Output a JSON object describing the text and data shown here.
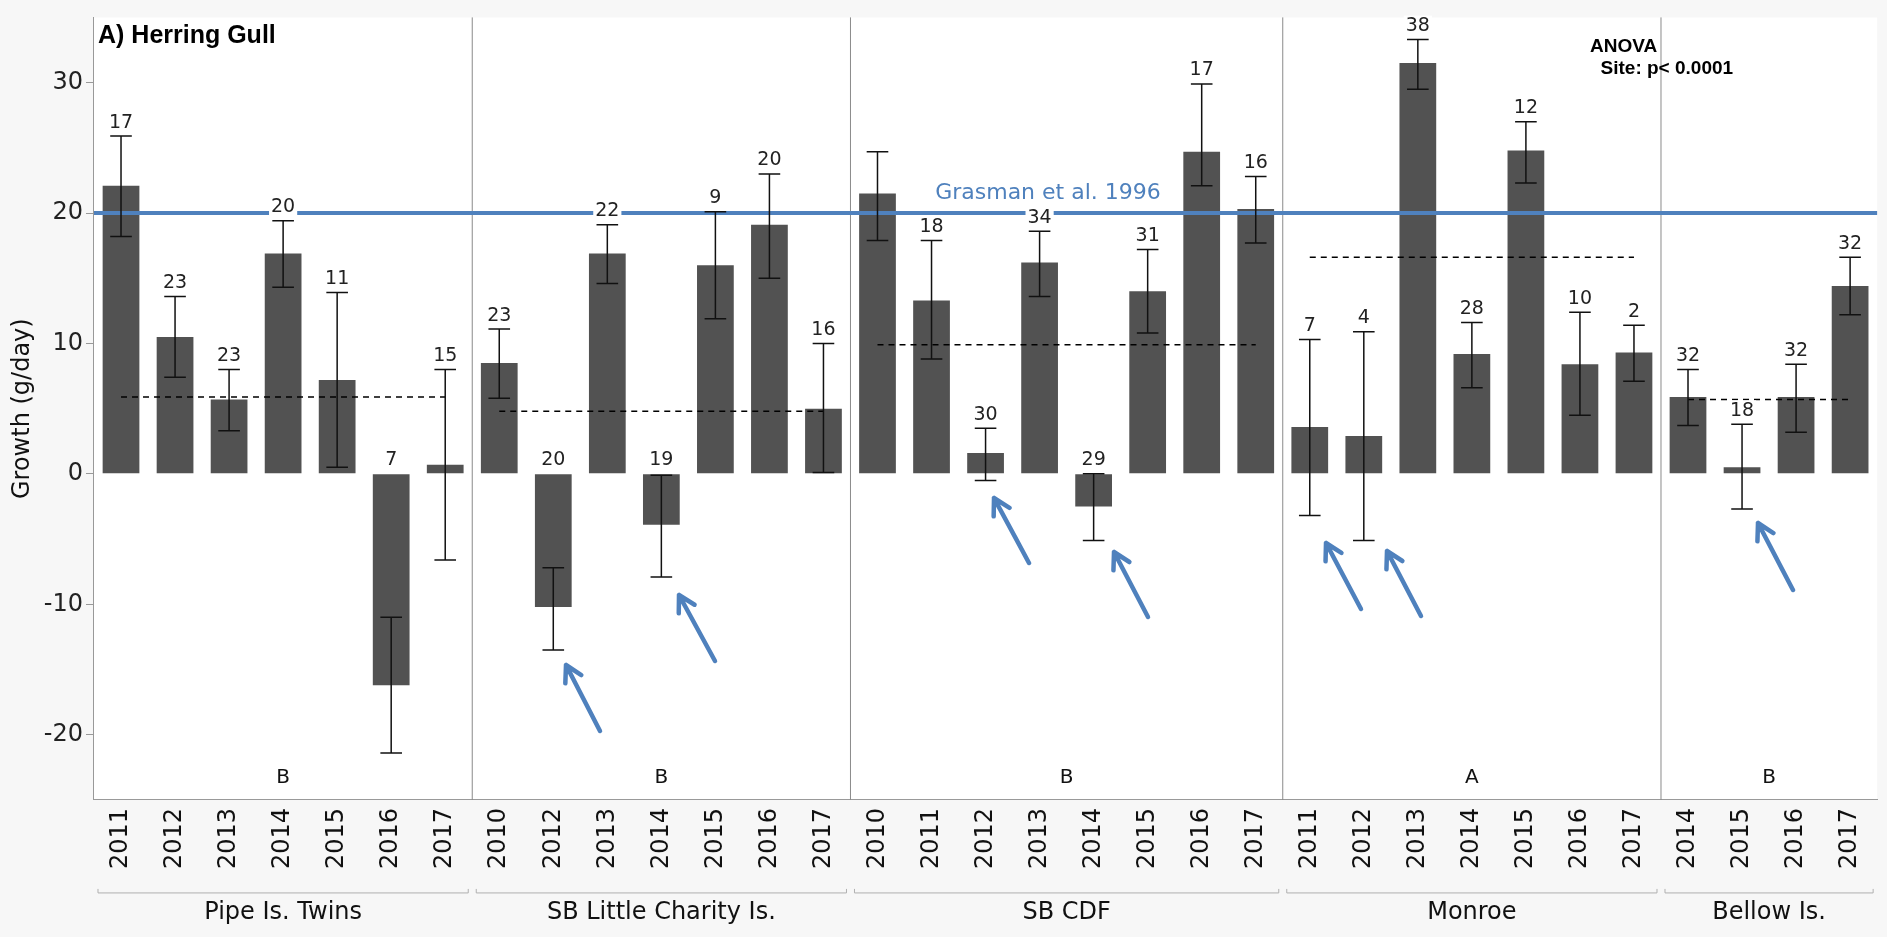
{
  "chart_data": {
    "type": "bar",
    "title": "A) Herring Gull",
    "ylabel": "Growth (g/day)",
    "categories": [
      "2011",
      "2012",
      "2013",
      "2014",
      "2015",
      "2016",
      "2017",
      "2010",
      "2012",
      "2013",
      "2014",
      "2015",
      "2016",
      "2017",
      "2010",
      "2011",
      "2012",
      "2013",
      "2014",
      "2015",
      "2016",
      "2017",
      "2011",
      "2012",
      "2013",
      "2014",
      "2015",
      "2016",
      "2017",
      "2014",
      "2015",
      "2016",
      "2017"
    ],
    "series": [
      {
        "type": "bar",
        "color": "#525252",
        "values": [
          22.1,
          10.5,
          5.7,
          16.9,
          7.2,
          -16.2,
          0.7,
          8.5,
          -10.2,
          16.9,
          -3.9,
          16.0,
          19.1,
          5.0,
          21.5,
          13.3,
          1.6,
          16.2,
          -2.5,
          14.0,
          24.7,
          20.3,
          3.6,
          2.9,
          31.5,
          9.2,
          24.8,
          8.4,
          9.3,
          5.9,
          0.5,
          5.9,
          14.4
        ],
        "errors": [
          [
            18.2,
            25.9
          ],
          [
            7.4,
            13.6
          ],
          [
            3.3,
            8.0
          ],
          [
            14.3,
            19.4
          ],
          [
            0.5,
            13.9
          ],
          [
            -21.4,
            -11.0
          ],
          [
            -6.6,
            8.0
          ],
          [
            5.8,
            11.1
          ],
          [
            -13.5,
            -7.2
          ],
          [
            14.6,
            19.1
          ],
          [
            -7.9,
            -0.1
          ],
          [
            11.9,
            20.1
          ],
          [
            15.0,
            23.0
          ],
          [
            0.1,
            10.0
          ],
          [
            17.9,
            24.7
          ],
          [
            8.8,
            17.9
          ],
          [
            -0.5,
            3.5
          ],
          [
            13.6,
            18.6
          ],
          [
            -5.1,
            0.0
          ],
          [
            10.8,
            17.2
          ],
          [
            22.1,
            29.9
          ],
          [
            17.7,
            22.8
          ],
          [
            -3.2,
            10.3
          ],
          [
            -5.1,
            10.9
          ],
          [
            29.5,
            33.3
          ],
          [
            6.6,
            11.6
          ],
          [
            22.3,
            27.0
          ],
          [
            4.5,
            12.4
          ],
          [
            7.1,
            11.4
          ],
          [
            3.7,
            8.0
          ],
          [
            -2.7,
            3.8
          ],
          [
            3.2,
            8.4
          ],
          [
            12.2,
            16.6
          ]
        ]
      },
      {
        "type": "line",
        "color": "#000000",
        "line_style": "dashed",
        "marker": "none",
        "values": [
          5.9,
          5.9,
          5.9,
          5.9,
          5.9,
          5.9,
          5.9,
          null,
          null,
          null,
          null,
          null,
          null,
          null,
          null,
          null,
          null,
          null,
          null,
          null,
          null,
          null,
          null,
          null,
          null,
          null,
          null,
          null,
          null,
          null,
          null,
          null,
          null
        ]
      },
      {
        "type": "line",
        "color": "#000000",
        "line_style": "dashed",
        "marker": "none",
        "values": [
          null,
          null,
          null,
          null,
          null,
          null,
          null,
          4.8,
          4.8,
          4.8,
          4.8,
          4.8,
          4.8,
          4.8,
          null,
          null,
          null,
          null,
          null,
          null,
          null,
          null,
          null,
          null,
          null,
          null,
          null,
          null,
          null,
          null,
          null,
          null,
          null
        ]
      },
      {
        "type": "line",
        "color": "#000000",
        "line_style": "dashed",
        "marker": "none",
        "values": [
          null,
          null,
          null,
          null,
          null,
          null,
          null,
          null,
          null,
          null,
          null,
          null,
          null,
          null,
          9.9,
          9.9,
          9.9,
          9.9,
          9.9,
          9.9,
          9.9,
          9.9,
          null,
          null,
          null,
          null,
          null,
          null,
          null,
          null,
          null,
          null,
          null
        ]
      },
      {
        "type": "line",
        "color": "#000000",
        "line_style": "dashed",
        "marker": "none",
        "values": [
          null,
          null,
          null,
          null,
          null,
          null,
          null,
          null,
          null,
          null,
          null,
          null,
          null,
          null,
          null,
          null,
          null,
          null,
          null,
          null,
          null,
          null,
          16.6,
          16.6,
          16.6,
          16.6,
          16.6,
          16.6,
          16.6,
          null,
          null,
          null,
          null
        ]
      },
      {
        "type": "line",
        "color": "#000000",
        "line_style": "dashed",
        "marker": "none",
        "values": [
          null,
          null,
          null,
          null,
          null,
          null,
          null,
          null,
          null,
          null,
          null,
          null,
          null,
          null,
          null,
          null,
          null,
          null,
          null,
          null,
          null,
          null,
          null,
          null,
          null,
          null,
          null,
          null,
          null,
          5.7,
          5.7,
          5.7,
          5.7
        ]
      }
    ],
    "ylim": [
      -25,
      35
    ],
    "yticks": [
      -20,
      -10,
      0,
      10,
      20,
      30
    ],
    "grid": false,
    "legend": false,
    "ref_lines": [
      {
        "axis": "y",
        "value": 20,
        "label": "Grasman et al. 1996",
        "color": "#4f81bd"
      }
    ],
    "annotations": [
      "ANOVA\n  Site: p< 0.0001",
      "Pipe Is. Twins",
      "SB Little Charity Is.",
      "SB CDF",
      "Monroe",
      "Bellow Is.",
      "B",
      "B",
      "B",
      "A",
      "B",
      "17",
      "23",
      "23",
      "20",
      "11",
      "7",
      "15",
      "23",
      "20",
      "22",
      "19",
      "9",
      "20",
      "16",
      "18",
      "30",
      "34",
      "29",
      "31",
      "17",
      "16",
      "7",
      "4",
      "38",
      "28",
      "12",
      "10",
      "2",
      "32",
      "18",
      "32",
      "32"
    ]
  }
}
